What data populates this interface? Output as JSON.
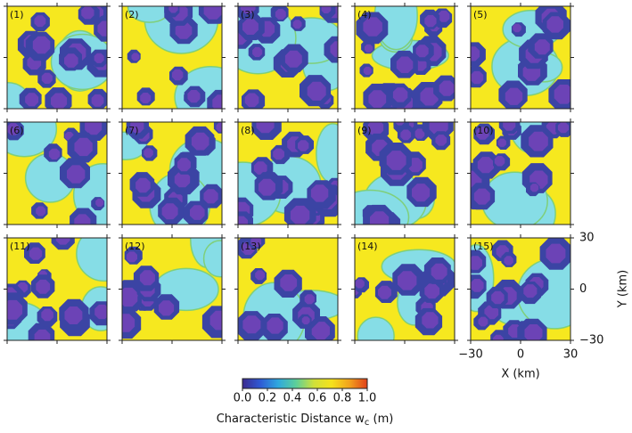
{
  "chart_data": {
    "type": "map-grid",
    "panels": [
      "(1)",
      "(2)",
      "(3)",
      "(4)",
      "(5)",
      "(6)",
      "(7)",
      "(8)",
      "(9)",
      "(10)",
      "(11)",
      "(12)",
      "(13)",
      "(14)",
      "(15)"
    ],
    "xlim": [
      -30,
      30
    ],
    "ylim": [
      -30,
      30
    ],
    "xticks": [
      {
        "value": -30,
        "label": "−30"
      },
      0,
      30
    ],
    "yticks": [
      {
        "value": -30,
        "label": "−30"
      },
      0,
      30
    ],
    "xlabel": "X (km)",
    "ylabel": "Y (km)",
    "colorbar": {
      "label": [
        "Characteristic Distance w",
        "c",
        " (m)"
      ],
      "lim": [
        0,
        1
      ],
      "ticks": [
        {
          "value": 0,
          "label": "0.0"
        },
        {
          "value": 0.2,
          "label": "0.2"
        },
        {
          "value": 0.4,
          "label": "0.4"
        },
        {
          "value": 0.6,
          "label": "0.6"
        },
        {
          "value": 0.8,
          "label": "0.8"
        },
        {
          "value": 1,
          "label": "1.0"
        }
      ],
      "colors": [
        "#3b2a8f",
        "#2f5ad4",
        "#2fa8de",
        "#5ccf9a",
        "#cfe03a",
        "#f5e21c",
        "#f2a21c",
        "#e0401a"
      ]
    }
  }
}
